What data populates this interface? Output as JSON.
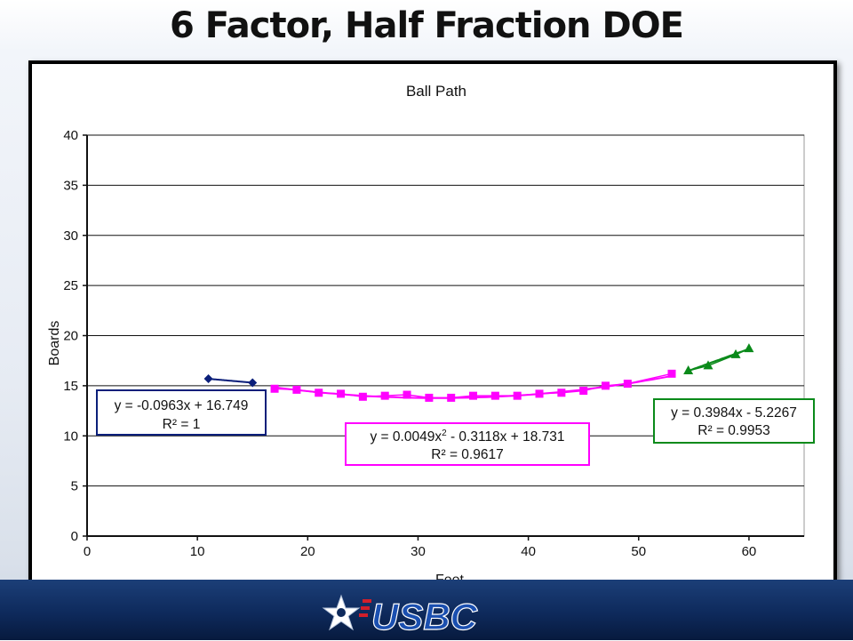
{
  "slide": {
    "title": "6 Factor, Half Fraction DOE"
  },
  "logo": {
    "text": "USBC",
    "icon": "bowler-star-logo-icon"
  },
  "chart_data": {
    "type": "scatter",
    "title": "Ball Path",
    "xlabel": "Feet",
    "ylabel": "Boards",
    "xlim": [
      0,
      65
    ],
    "ylim": [
      0,
      40
    ],
    "x_ticks": [
      0,
      10,
      20,
      30,
      40,
      50,
      60
    ],
    "y_ticks": [
      0,
      5,
      10,
      15,
      20,
      25,
      30,
      35,
      40
    ],
    "grid": "horizontal",
    "legend": "none",
    "series": [
      {
        "marker": "diamond",
        "color": "#0b1f7a",
        "points": [
          [
            11,
            15.7
          ],
          [
            15,
            15.3
          ]
        ],
        "trendline": {
          "kind": "linear",
          "coef": [
            -0.0963,
            16.749
          ],
          "x_range": [
            11,
            15
          ],
          "equation": "y = -0.0963x + 16.749",
          "r2": "R² = 1",
          "box_color": "#0b1f7a"
        }
      },
      {
        "marker": "square",
        "color": "#ff00ff",
        "points": [
          [
            17,
            14.7
          ],
          [
            19,
            14.6
          ],
          [
            21,
            14.3
          ],
          [
            23,
            14.2
          ],
          [
            25,
            13.9
          ],
          [
            27,
            14.0
          ],
          [
            29,
            14.1
          ],
          [
            31,
            13.8
          ],
          [
            33,
            13.8
          ],
          [
            35,
            14.0
          ],
          [
            37,
            14.0
          ],
          [
            39,
            14.0
          ],
          [
            41,
            14.2
          ],
          [
            43,
            14.3
          ],
          [
            45,
            14.5
          ],
          [
            47,
            15.0
          ],
          [
            49,
            15.2
          ],
          [
            53,
            16.2
          ]
        ],
        "trendline": {
          "kind": "quadratic",
          "coef": [
            0.0049,
            -0.3118,
            18.731
          ],
          "x_range": [
            17,
            53
          ],
          "equation_prefix": "y = 0.0049x",
          "equation_sup": "2",
          "equation_suffix": " - 0.3118x + 18.731",
          "r2": "R² = 0.9617",
          "box_color": "#ff00ff"
        }
      },
      {
        "marker": "triangle",
        "color": "#0a8a1a",
        "points": [
          [
            54.5,
            16.5
          ],
          [
            56.3,
            17.0
          ],
          [
            58.8,
            18.1
          ],
          [
            60,
            18.7
          ]
        ],
        "trendline": {
          "kind": "linear",
          "coef": [
            0.3984,
            -5.2267
          ],
          "x_range": [
            54.5,
            60
          ],
          "equation": "y = 0.3984x - 5.2267",
          "r2": "R² = 0.9953",
          "box_color": "#0a8a1a"
        }
      }
    ]
  }
}
